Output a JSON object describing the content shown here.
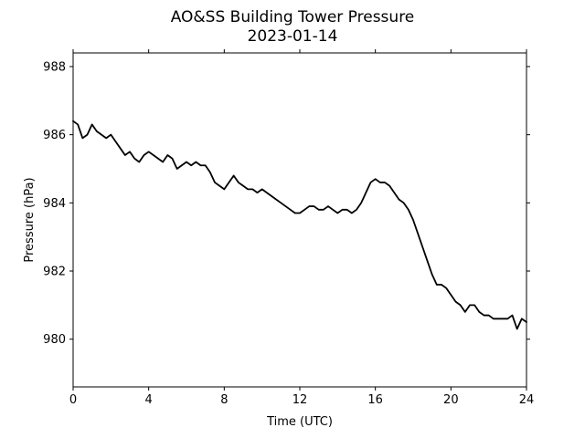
{
  "chart_data": {
    "type": "line",
    "title": "AO&SS Building Tower Pressure",
    "subtitle": "2023-01-14",
    "xlabel": "Time (UTC)",
    "ylabel": "Pressure (hPa)",
    "xlim": [
      0,
      24
    ],
    "ylim": [
      978.6,
      988.4
    ],
    "x_ticks": [
      0,
      4,
      8,
      12,
      16,
      20,
      24
    ],
    "x_tick_labels": [
      "0",
      "4",
      "8",
      "12",
      "16",
      "20",
      "24"
    ],
    "y_ticks": [
      980,
      982,
      984,
      986,
      988
    ],
    "y_tick_labels": [
      "980",
      "982",
      "984",
      "986",
      "988"
    ],
    "grid": false,
    "line_color": "#000000",
    "series": [
      {
        "x": [
          0,
          0.25,
          0.5,
          0.75,
          1.0,
          1.25,
          1.5,
          1.75,
          2.0,
          2.25,
          2.5,
          2.75,
          3.0,
          3.25,
          3.5,
          3.75,
          4.0,
          4.25,
          4.5,
          4.75,
          5.0,
          5.25,
          5.5,
          5.75,
          6.0,
          6.25,
          6.5,
          6.75,
          7.0,
          7.25,
          7.5,
          7.75,
          8.0,
          8.25,
          8.5,
          8.75,
          9.0,
          9.25,
          9.5,
          9.75,
          10.0,
          10.25,
          10.5,
          10.75,
          11.0,
          11.25,
          11.5,
          11.75,
          12.0,
          12.25,
          12.5,
          12.75,
          13.0,
          13.25,
          13.5,
          13.75,
          14.0,
          14.25,
          14.5,
          14.75,
          15.0,
          15.25,
          15.5,
          15.75,
          16.0,
          16.25,
          16.5,
          16.75,
          17.0,
          17.25,
          17.5,
          17.75,
          18.0,
          18.25,
          18.5,
          18.75,
          19.0,
          19.25,
          19.5,
          19.75,
          20.0,
          20.25,
          20.5,
          20.75,
          21.0,
          21.25,
          21.5,
          21.75,
          22.0,
          22.25,
          22.5,
          22.75,
          23.0,
          23.25,
          23.5,
          23.75,
          24.0
        ],
        "y": [
          986.4,
          986.3,
          985.9,
          986.0,
          986.3,
          986.1,
          986.0,
          985.9,
          986.0,
          985.8,
          985.6,
          985.4,
          985.5,
          985.3,
          985.2,
          985.4,
          985.5,
          985.4,
          985.3,
          985.2,
          985.4,
          985.3,
          985.0,
          985.1,
          985.2,
          985.1,
          985.2,
          985.1,
          985.1,
          984.9,
          984.6,
          984.5,
          984.4,
          984.6,
          984.8,
          984.6,
          984.5,
          984.4,
          984.4,
          984.3,
          984.4,
          984.3,
          984.2,
          984.1,
          984.0,
          983.9,
          983.8,
          983.7,
          983.7,
          983.8,
          983.9,
          983.9,
          983.8,
          983.8,
          983.9,
          983.8,
          983.7,
          983.8,
          983.8,
          983.7,
          983.8,
          984.0,
          984.3,
          984.6,
          984.7,
          984.6,
          984.6,
          984.5,
          984.3,
          984.1,
          984.0,
          983.8,
          983.5,
          983.1,
          982.7,
          982.3,
          981.9,
          981.6,
          981.6,
          981.5,
          981.3,
          981.1,
          981.0,
          980.8,
          981.0,
          981.0,
          980.8,
          980.7,
          980.7,
          980.6,
          980.6,
          980.6,
          980.6,
          980.7,
          980.3,
          980.6,
          980.5
        ]
      }
    ]
  }
}
